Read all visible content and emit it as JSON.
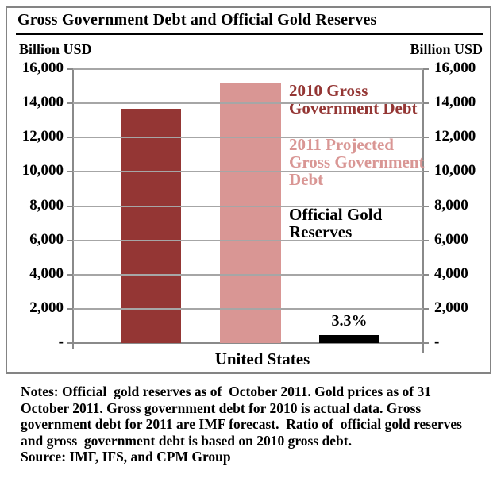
{
  "chart": {
    "title": "Gross Government Debt and Official Gold Reserves",
    "unit_left": "Billion USD",
    "unit_right": "Billion USD",
    "x_category": "United States"
  },
  "chart_data": {
    "type": "bar",
    "title": "Gross Government Debt and Official Gold Reserves",
    "categories": [
      "United States"
    ],
    "series": [
      {
        "name": "2010 Gross Government Debt",
        "values": [
          13700
        ],
        "color": "#943634"
      },
      {
        "name": "2011 Projected Gross Government Debt",
        "values": [
          15200
        ],
        "color": "#D99694"
      },
      {
        "name": "Official Gold Reserves",
        "values": [
          450
        ],
        "color": "#000000",
        "data_label": "3.3%"
      }
    ],
    "ylabel": "Billion USD",
    "ylim": [
      0,
      16000
    ],
    "ytick_interval": 2000,
    "ytick_values": [
      16000,
      14000,
      12000,
      10000,
      8000,
      6000,
      4000,
      2000,
      0
    ],
    "ytick_labels": [
      "16,000",
      "14,000",
      "12,000",
      "10,000",
      "8,000",
      "6,000",
      "4,000",
      "2,000",
      "-"
    ],
    "grid": true,
    "axis_labels_both_sides": true,
    "legend_position": "inside-right"
  },
  "legend": {
    "items": [
      {
        "label": "2010 Gross\nGovernment Debt",
        "color": "#943634"
      },
      {
        "label": "2011 Projected\nGross Government\nDebt",
        "color": "#D99694"
      },
      {
        "label": "Official Gold\nReserves",
        "color": "#000000"
      }
    ]
  },
  "notes": {
    "lines": [
      "Notes: Official  gold reserves as of  October 2011. Gold prices as of 31",
      "October 2011. Gross government debt for 2010 is actual data. Gross",
      "government debt for 2011 are IMF forecast.  Ratio of  official gold reserves",
      "and gross  government debt is based on 2010 gross debt.",
      "Source: IMF, IFS, and CPM Group"
    ]
  }
}
